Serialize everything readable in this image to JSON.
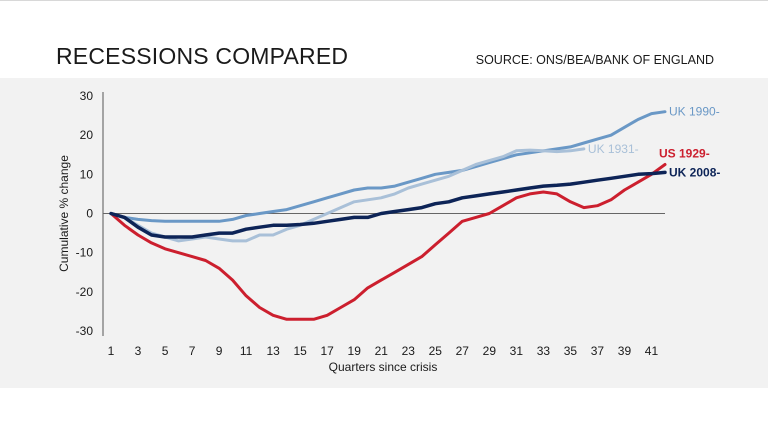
{
  "header": {
    "title": "RECESSIONS COMPARED",
    "source": "SOURCE: ONS/BEA/BANK OF ENGLAND"
  },
  "chart_data": {
    "type": "line",
    "xlabel": "Quarters since crisis",
    "ylabel": "Cumulative % change",
    "xlim": [
      1,
      42
    ],
    "ylim": [
      -30,
      30
    ],
    "x_ticks": [
      1,
      3,
      5,
      7,
      9,
      11,
      13,
      15,
      17,
      19,
      21,
      23,
      25,
      27,
      29,
      31,
      33,
      35,
      37,
      39,
      41
    ],
    "y_ticks": [
      30,
      20,
      10,
      0,
      -10,
      -20,
      -30
    ],
    "grid": false,
    "legend": "inline labels at line ends",
    "series": [
      {
        "name": "UK 1990-",
        "color": "#6a98c6",
        "x": [
          1,
          2,
          3,
          4,
          5,
          6,
          7,
          8,
          9,
          10,
          11,
          12,
          13,
          14,
          15,
          16,
          17,
          18,
          19,
          20,
          21,
          22,
          23,
          24,
          25,
          26,
          27,
          28,
          29,
          30,
          31,
          32,
          33,
          34,
          35,
          36,
          37,
          38,
          39,
          40,
          41,
          42
        ],
        "values": [
          0,
          -1,
          -1.5,
          -1.8,
          -2,
          -2,
          -2,
          -2,
          -2,
          -1.5,
          -0.5,
          0,
          0.5,
          1,
          2,
          3,
          4,
          5,
          6,
          6.5,
          6.5,
          7,
          8,
          9,
          10,
          10.5,
          11,
          12,
          13,
          14,
          15,
          15.5,
          16,
          16.5,
          17,
          18,
          19,
          20,
          22,
          24,
          25.5,
          26
        ]
      },
      {
        "name": "UK 1931-",
        "color": "#a9c0d8",
        "x": [
          1,
          2,
          3,
          4,
          5,
          6,
          7,
          8,
          9,
          10,
          11,
          12,
          13,
          14,
          15,
          16,
          17,
          18,
          19,
          20,
          21,
          22,
          23,
          24,
          25,
          26,
          27,
          28,
          29,
          30,
          31,
          32,
          33,
          34,
          35,
          36
        ],
        "values": [
          0,
          -1,
          -3,
          -5,
          -6,
          -7,
          -6.5,
          -6,
          -6.5,
          -7,
          -7,
          -5.5,
          -5.5,
          -4,
          -3,
          -1.5,
          0,
          1.5,
          3,
          3.5,
          4,
          5,
          6.5,
          7.5,
          8.5,
          9.5,
          11,
          12.5,
          13.5,
          14.5,
          16,
          16.2,
          16,
          15.8,
          16,
          16.5
        ]
      },
      {
        "name": "US 1929-",
        "color": "#cc1f2e",
        "x": [
          1,
          2,
          3,
          4,
          5,
          6,
          7,
          8,
          9,
          10,
          11,
          12,
          13,
          14,
          15,
          16,
          17,
          18,
          19,
          20,
          21,
          22,
          23,
          24,
          25,
          26,
          27,
          28,
          29,
          30,
          31,
          32,
          33,
          34,
          35,
          36,
          37,
          38,
          39,
          40,
          41,
          42
        ],
        "values": [
          0,
          -3,
          -5.5,
          -7.5,
          -9,
          -10,
          -11,
          -12,
          -14,
          -17,
          -21,
          -24,
          -26,
          -27,
          -27,
          -27,
          -26,
          -24,
          -22,
          -19,
          -17,
          -15,
          -13,
          -11,
          -8,
          -5,
          -2,
          -1,
          0,
          2,
          4,
          5,
          5.5,
          5,
          3,
          1.5,
          2,
          3.5,
          6,
          8,
          10,
          12.5
        ]
      },
      {
        "name": "UK 2008-",
        "color": "#0d2457",
        "x": [
          1,
          2,
          3,
          4,
          5,
          6,
          7,
          8,
          9,
          10,
          11,
          12,
          13,
          14,
          15,
          16,
          17,
          18,
          19,
          20,
          21,
          22,
          23,
          24,
          25,
          26,
          27,
          28,
          29,
          30,
          31,
          32,
          33,
          34,
          35,
          36,
          37,
          38,
          39,
          40,
          41,
          42
        ],
        "values": [
          0,
          -1,
          -3.5,
          -5.5,
          -6,
          -6,
          -6,
          -5.5,
          -5,
          -5,
          -4,
          -3.5,
          -3,
          -3,
          -2.8,
          -2.5,
          -2,
          -1.5,
          -1,
          -1,
          0,
          0.5,
          1,
          1.5,
          2.5,
          3,
          4,
          4.5,
          5,
          5.5,
          6,
          6.5,
          7,
          7.2,
          7.5,
          8,
          8.5,
          9,
          9.5,
          10,
          10.2,
          10.5
        ]
      }
    ]
  }
}
